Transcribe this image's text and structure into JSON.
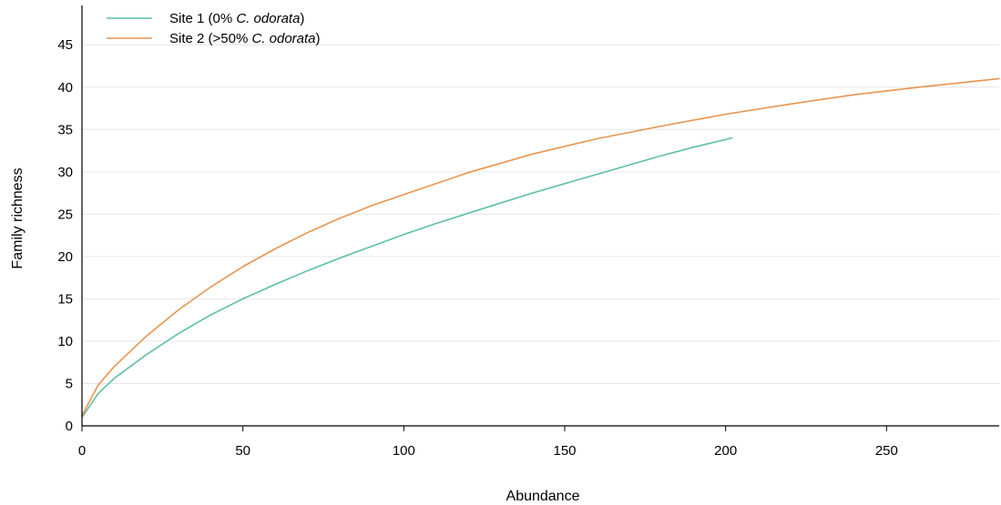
{
  "chart_data": {
    "type": "line",
    "title": "",
    "xlabel": "Abundance",
    "ylabel": "Family richness",
    "xlim": [
      0,
      285
    ],
    "ylim": [
      0,
      49
    ],
    "xticks": [
      0,
      50,
      100,
      150,
      200,
      250
    ],
    "yticks": [
      0,
      5,
      10,
      15,
      20,
      25,
      30,
      35,
      40,
      45
    ],
    "grid": "horizontal",
    "legend_position": "top-left",
    "series": [
      {
        "name_prefix": "Site 1 (0% ",
        "name_italic": "C. odorata",
        "name_suffix": ")",
        "color": "#5fbfa4",
        "x": [
          0,
          5,
          10,
          20,
          30,
          40,
          50,
          60,
          70,
          80,
          90,
          100,
          110,
          120,
          130,
          140,
          150,
          160,
          170,
          180,
          190,
          202
        ],
        "y": [
          1.0,
          3.8,
          5.6,
          8.4,
          10.9,
          13.1,
          15.0,
          16.7,
          18.3,
          19.8,
          21.2,
          22.6,
          23.9,
          25.1,
          26.3,
          27.5,
          28.6,
          29.7,
          30.8,
          31.9,
          32.9,
          34.0
        ]
      },
      {
        "name_prefix": "Site 2 (>50% ",
        "name_italic": "C. odorata",
        "name_suffix": ")",
        "color": "#e8944e",
        "x": [
          0,
          5,
          10,
          20,
          30,
          40,
          50,
          60,
          70,
          80,
          90,
          100,
          120,
          140,
          160,
          180,
          200,
          220,
          240,
          260,
          285
        ],
        "y": [
          1.2,
          4.8,
          7.0,
          10.6,
          13.7,
          16.4,
          18.8,
          20.9,
          22.8,
          24.5,
          26.0,
          27.3,
          29.9,
          32.1,
          33.9,
          35.4,
          36.8,
          38.0,
          39.1,
          40.0,
          41.0
        ]
      }
    ]
  }
}
